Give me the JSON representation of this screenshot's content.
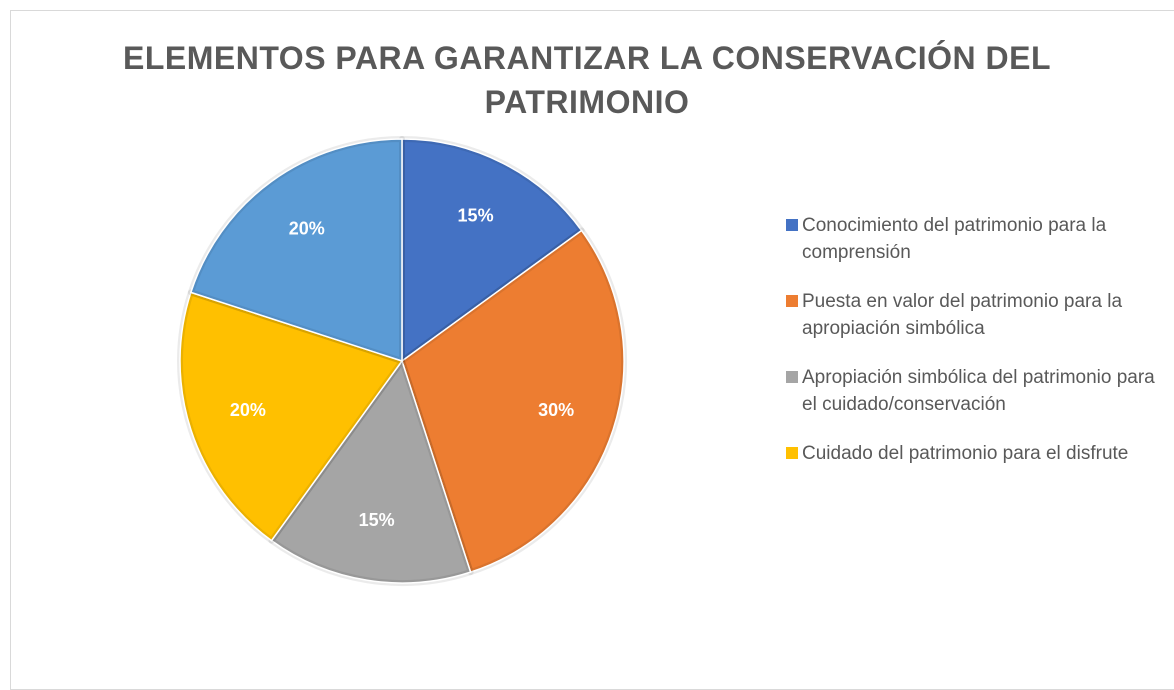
{
  "chart_data": {
    "type": "pie",
    "title": "ELEMENTOS PARA GARANTIZAR LA CONSERVACIÓN DEL PATRIMONIO",
    "categories": [
      "Conocimiento del patrimonio para la comprensión",
      "Puesta en valor del patrimonio para la apropiación simbólica",
      "Apropiación simbólica del patrimonio para el cuidado/conservación",
      "Cuidado del patrimonio para el disfrute",
      null
    ],
    "values": [
      15,
      30,
      15,
      20,
      20
    ],
    "value_labels": [
      "15%",
      "30%",
      "15%",
      "20%",
      "20%"
    ],
    "colors": [
      "#4472c4",
      "#ed7d31",
      "#a5a5a5",
      "#ffc000",
      "#5b9bd5"
    ],
    "legend": "right"
  }
}
